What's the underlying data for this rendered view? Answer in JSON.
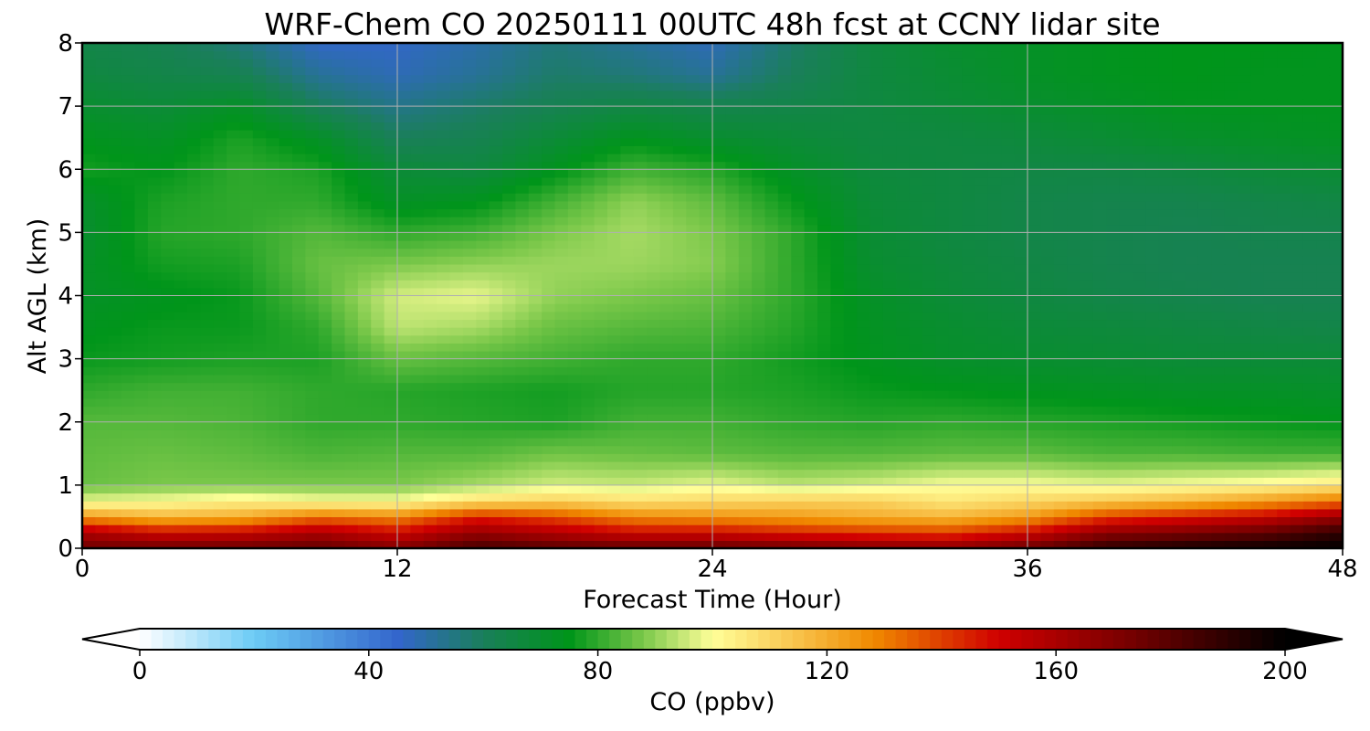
{
  "chart_data": {
    "type": "heatmap",
    "title": "WRF-Chem CO  20250111 00UTC 48h fcst at CCNY lidar site",
    "xlabel": "Forecast Time (Hour)",
    "ylabel": "Alt AGL (km)",
    "xlim": [
      0,
      48
    ],
    "ylim": [
      0,
      8
    ],
    "xticks": [
      0,
      12,
      24,
      36,
      48
    ],
    "yticks": [
      0,
      1,
      2,
      3,
      4,
      5,
      6,
      7,
      8
    ],
    "grid": true,
    "colorbar": {
      "label": "CO  (ppbv)",
      "min": 0,
      "max": 200,
      "ticks": [
        0,
        40,
        80,
        120,
        160,
        200
      ],
      "extend": "both",
      "orientation": "horizontal",
      "stops": [
        {
          "v": 0,
          "c": "#ffffff"
        },
        {
          "v": 20,
          "c": "#6ccbf5"
        },
        {
          "v": 45,
          "c": "#3366cc"
        },
        {
          "v": 60,
          "c": "#1a7f5a"
        },
        {
          "v": 75,
          "c": "#00951a"
        },
        {
          "v": 88,
          "c": "#7bc84a"
        },
        {
          "v": 100,
          "c": "#ffff99"
        },
        {
          "v": 115,
          "c": "#f8c24a"
        },
        {
          "v": 128,
          "c": "#f08a00"
        },
        {
          "v": 150,
          "c": "#d00000"
        },
        {
          "v": 172,
          "c": "#7a0000"
        },
        {
          "v": 200,
          "c": "#000000"
        }
      ]
    },
    "x": [
      0,
      3,
      6,
      9,
      12,
      15,
      18,
      21,
      24,
      27,
      30,
      33,
      36,
      39,
      42,
      45,
      48
    ],
    "y": [
      0,
      0.25,
      0.5,
      0.75,
      1,
      1.5,
      2,
      2.5,
      3,
      3.5,
      4,
      4.5,
      5,
      5.5,
      6,
      6.5,
      7,
      7.5,
      8
    ],
    "z": [
      [
        175,
        175,
        176,
        178,
        170,
        185,
        180,
        178,
        178,
        175,
        170,
        168,
        176,
        190,
        195,
        198,
        200
      ],
      [
        160,
        150,
        152,
        160,
        150,
        165,
        158,
        150,
        150,
        145,
        142,
        140,
        150,
        168,
        172,
        178,
        190
      ],
      [
        125,
        118,
        120,
        132,
        128,
        145,
        138,
        128,
        126,
        124,
        120,
        118,
        124,
        140,
        146,
        152,
        165
      ],
      [
        98,
        100,
        104,
        100,
        100,
        108,
        112,
        108,
        110,
        112,
        112,
        106,
        110,
        114,
        118,
        124,
        132
      ],
      [
        86,
        88,
        88,
        88,
        88,
        92,
        96,
        95,
        98,
        94,
        96,
        100,
        100,
        98,
        100,
        102,
        106
      ],
      [
        85,
        86,
        85,
        83,
        84,
        84,
        87,
        86,
        85,
        84,
        84,
        85,
        85,
        83,
        83,
        82,
        82
      ],
      [
        84,
        84,
        83,
        80,
        80,
        79,
        78,
        82,
        82,
        80,
        79,
        80,
        79,
        78,
        77,
        76,
        75
      ],
      [
        80,
        82,
        82,
        80,
        79,
        78,
        77,
        79,
        79,
        78,
        76,
        75,
        74,
        73,
        72,
        72,
        71
      ],
      [
        76,
        77,
        78,
        78,
        86,
        84,
        82,
        80,
        80,
        77,
        74,
        71,
        70,
        69,
        68,
        68,
        68
      ],
      [
        74,
        76,
        76,
        80,
        94,
        92,
        86,
        84,
        83,
        79,
        73,
        70,
        68,
        67,
        66,
        65,
        64
      ],
      [
        72,
        74,
        76,
        84,
        96,
        98,
        90,
        88,
        86,
        80,
        72,
        68,
        66,
        64,
        63,
        62,
        62
      ],
      [
        72,
        77,
        78,
        86,
        88,
        90,
        91,
        91,
        89,
        80,
        70,
        67,
        65,
        63,
        62,
        62,
        62
      ],
      [
        70,
        79,
        80,
        84,
        80,
        82,
        88,
        92,
        88,
        80,
        69,
        66,
        64,
        63,
        62,
        63,
        63
      ],
      [
        71,
        78,
        80,
        80,
        72,
        74,
        82,
        90,
        85,
        76,
        68,
        66,
        64,
        63,
        63,
        64,
        65
      ],
      [
        77,
        75,
        80,
        78,
        68,
        66,
        74,
        82,
        79,
        72,
        67,
        66,
        65,
        65,
        66,
        68,
        69
      ],
      [
        74,
        72,
        78,
        72,
        60,
        62,
        68,
        74,
        70,
        68,
        66,
        66,
        67,
        69,
        71,
        72,
        73
      ],
      [
        70,
        68,
        72,
        60,
        54,
        58,
        62,
        65,
        63,
        64,
        66,
        68,
        70,
        72,
        74,
        74,
        74
      ],
      [
        66,
        64,
        62,
        52,
        48,
        52,
        58,
        56,
        52,
        60,
        66,
        69,
        72,
        74,
        75,
        74,
        74
      ],
      [
        64,
        62,
        56,
        46,
        46,
        50,
        56,
        52,
        48,
        58,
        66,
        70,
        72,
        74,
        75,
        75,
        74
      ]
    ]
  }
}
